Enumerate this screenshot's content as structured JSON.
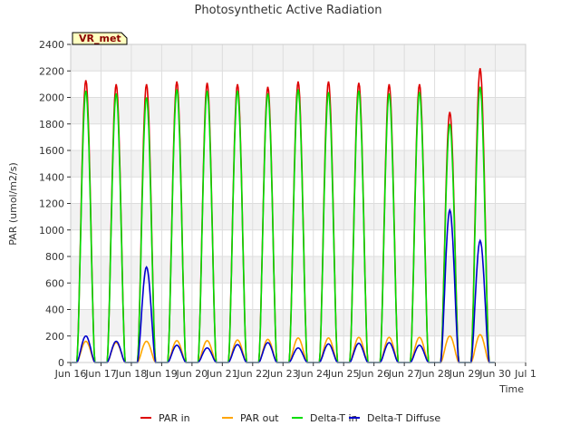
{
  "chart_data": {
    "type": "line",
    "title": "Photosynthetic Active Radiation",
    "xlabel": "Time",
    "ylabel": "PAR (umol/m2/s)",
    "site_label": "VR_met",
    "xlim": [
      16,
      31
    ],
    "ylim": [
      0,
      2400
    ],
    "yticks": [
      0,
      200,
      400,
      600,
      800,
      1000,
      1200,
      1400,
      1600,
      1800,
      2000,
      2200,
      2400
    ],
    "xticks": [
      {
        "x": 16,
        "label": "Jun 16"
      },
      {
        "x": 17,
        "label": "Jun 17"
      },
      {
        "x": 18,
        "label": "Jun 18"
      },
      {
        "x": 19,
        "label": "Jun 19"
      },
      {
        "x": 20,
        "label": "Jun 20"
      },
      {
        "x": 21,
        "label": "Jun 21"
      },
      {
        "x": 22,
        "label": "Jun 22"
      },
      {
        "x": 23,
        "label": "Jun 23"
      },
      {
        "x": 24,
        "label": "Jun 24"
      },
      {
        "x": 25,
        "label": "Jun 25"
      },
      {
        "x": 26,
        "label": "Jun 26"
      },
      {
        "x": 27,
        "label": "Jun 27"
      },
      {
        "x": 28,
        "label": "Jun 28"
      },
      {
        "x": 29,
        "label": "Jun 29"
      },
      {
        "x": 30,
        "label": "Jun 30"
      },
      {
        "x": 31,
        "label": "Jul 1"
      }
    ],
    "grid": true,
    "legend_position": "bottom",
    "series": [
      {
        "name": "PAR in",
        "color": "#dd0000",
        "day_peaks": [
          {
            "day": 16,
            "peak": 2130
          },
          {
            "day": 17,
            "peak": 2100
          },
          {
            "day": 18,
            "peak": 2100
          },
          {
            "day": 19,
            "peak": 2120
          },
          {
            "day": 20,
            "peak": 2110
          },
          {
            "day": 21,
            "peak": 2100
          },
          {
            "day": 22,
            "peak": 2080
          },
          {
            "day": 23,
            "peak": 2120
          },
          {
            "day": 24,
            "peak": 2120
          },
          {
            "day": 25,
            "peak": 2110
          },
          {
            "day": 26,
            "peak": 2100
          },
          {
            "day": 27,
            "peak": 2100
          },
          {
            "day": 28,
            "peak": 1890
          },
          {
            "day": 29,
            "peak": 2220
          }
        ]
      },
      {
        "name": "PAR out",
        "color": "#ffa500",
        "day_peaks": [
          {
            "day": 16,
            "peak": 160
          },
          {
            "day": 17,
            "peak": 150
          },
          {
            "day": 18,
            "peak": 160
          },
          {
            "day": 19,
            "peak": 165
          },
          {
            "day": 20,
            "peak": 165
          },
          {
            "day": 21,
            "peak": 170
          },
          {
            "day": 22,
            "peak": 175
          },
          {
            "day": 23,
            "peak": 185
          },
          {
            "day": 24,
            "peak": 185
          },
          {
            "day": 25,
            "peak": 190
          },
          {
            "day": 26,
            "peak": 190
          },
          {
            "day": 27,
            "peak": 190
          },
          {
            "day": 28,
            "peak": 200
          },
          {
            "day": 29,
            "peak": 210
          }
        ]
      },
      {
        "name": "Delta-T in",
        "color": "#00dd00",
        "day_peaks": [
          {
            "day": 16,
            "peak": 2050
          },
          {
            "day": 17,
            "peak": 2030
          },
          {
            "day": 18,
            "peak": 2000
          },
          {
            "day": 19,
            "peak": 2060
          },
          {
            "day": 20,
            "peak": 2050
          },
          {
            "day": 21,
            "peak": 2050
          },
          {
            "day": 22,
            "peak": 2030
          },
          {
            "day": 23,
            "peak": 2060
          },
          {
            "day": 24,
            "peak": 2040
          },
          {
            "day": 25,
            "peak": 2050
          },
          {
            "day": 26,
            "peak": 2030
          },
          {
            "day": 27,
            "peak": 2040
          },
          {
            "day": 28,
            "peak": 1800
          },
          {
            "day": 29,
            "peak": 2080
          }
        ]
      },
      {
        "name": "Delta-T Diffuse",
        "color": "#0000cc",
        "day_peaks": [
          {
            "day": 16,
            "peak": 200
          },
          {
            "day": 17,
            "peak": 160
          },
          {
            "day": 18,
            "peak": 720
          },
          {
            "day": 19,
            "peak": 130
          },
          {
            "day": 20,
            "peak": 110
          },
          {
            "day": 21,
            "peak": 135
          },
          {
            "day": 22,
            "peak": 150
          },
          {
            "day": 23,
            "peak": 110
          },
          {
            "day": 24,
            "peak": 140
          },
          {
            "day": 25,
            "peak": 145
          },
          {
            "day": 26,
            "peak": 150
          },
          {
            "day": 27,
            "peak": 130
          },
          {
            "day": 28,
            "peak": 1150
          },
          {
            "day": 29,
            "peak": 920
          }
        ]
      }
    ]
  }
}
